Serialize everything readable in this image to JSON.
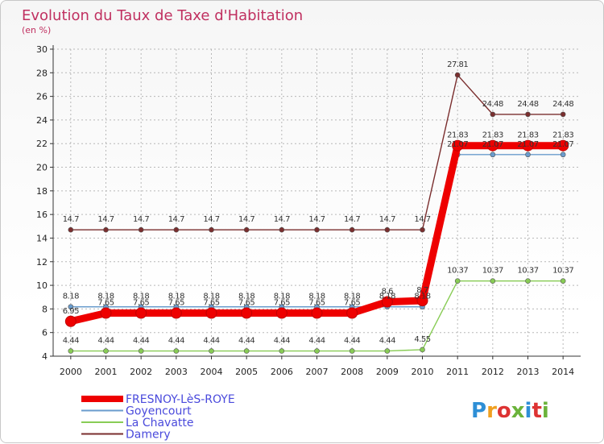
{
  "chart_data": {
    "type": "line",
    "title": "Evolution du Taux de Taxe d'Habitation",
    "subtitle": "(en %)",
    "x": [
      "2000",
      "2001",
      "2002",
      "2003",
      "2004",
      "2005",
      "2006",
      "2007",
      "2008",
      "2009",
      "2010",
      "2011",
      "2012",
      "2013",
      "2014"
    ],
    "ylim": [
      4,
      30
    ],
    "yticks": [
      4,
      6,
      8,
      10,
      12,
      14,
      16,
      18,
      20,
      22,
      24,
      26,
      28,
      30
    ],
    "grid": true,
    "series": [
      {
        "name": "Damery",
        "color": "#7a2e2e",
        "values": [
          14.7,
          14.7,
          14.7,
          14.7,
          14.7,
          14.7,
          14.7,
          14.7,
          14.7,
          14.7,
          14.7,
          27.81,
          24.48,
          24.48,
          24.48
        ],
        "labels": [
          "14.7",
          "14.7",
          "14.7",
          "14.7",
          "14.7",
          "14.7",
          "14.7",
          "14.7",
          "14.7",
          "14.7",
          "14.7",
          "27.81",
          "24.48",
          "24.48",
          "24.48"
        ]
      },
      {
        "name": "La Chavatte",
        "color": "#88cc55",
        "values": [
          4.44,
          4.44,
          4.44,
          4.44,
          4.44,
          4.44,
          4.44,
          4.44,
          4.44,
          4.44,
          4.55,
          10.37,
          10.37,
          10.37,
          10.37
        ],
        "labels": [
          "4.44",
          "4.44",
          "4.44",
          "4.44",
          "4.44",
          "4.44",
          "4.44",
          "4.44",
          "4.44",
          "4.44",
          "4.55",
          "10.37",
          "10.37",
          "10.37",
          "10.37"
        ]
      },
      {
        "name": "Goyencourt",
        "color": "#6a9ccd",
        "values": [
          8.18,
          8.18,
          8.18,
          8.18,
          8.18,
          8.18,
          8.18,
          8.18,
          8.18,
          8.18,
          8.18,
          21.07,
          21.07,
          21.07,
          21.07
        ],
        "labels": [
          "8.18",
          "8.18",
          "8.18",
          "8.18",
          "8.18",
          "8.18",
          "8.18",
          "8.18",
          "8.18",
          "8.18",
          "8.18",
          "21.07",
          "21.07",
          "21.07",
          "21.07"
        ]
      },
      {
        "name": "FRESNOY-LèS-ROYE",
        "color": "#ee0000",
        "values": [
          6.95,
          7.65,
          7.65,
          7.65,
          7.65,
          7.65,
          7.65,
          7.65,
          7.65,
          8.6,
          8.7,
          21.83,
          21.83,
          21.83,
          21.83
        ],
        "labels": [
          "6.95",
          "7.65",
          "7.65",
          "7.65",
          "7.65",
          "7.65",
          "7.65",
          "7.65",
          "7.65",
          "8.6",
          "8.7",
          "21.83",
          "21.83",
          "21.83",
          "21.83"
        ]
      }
    ],
    "legend": [
      "FRESNOY-LèS-ROYE",
      "Goyencourt",
      "La Chavatte",
      "Damery"
    ]
  },
  "logo": {
    "text": "Proxiti"
  }
}
